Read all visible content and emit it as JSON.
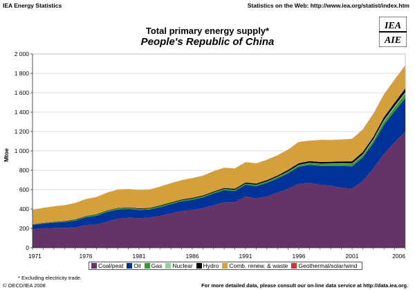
{
  "header": {
    "left": "IEA Energy Statistics",
    "right": "Statistics on the Web: http://www.iea.org/statist/index.htm"
  },
  "logo": {
    "name": "iea-logo",
    "text_top": "IEA",
    "text_bottom": "AIE"
  },
  "footnote": "* Excluding electricity trade.",
  "footer": {
    "copyright": "© OECD/IEA 2008",
    "more_data": "For more detailed data, please consult our on-line data service at http://data.iea.org."
  },
  "chart_data": {
    "type": "area",
    "title": "Total primary energy supply*",
    "subtitle": "People's Republic of China",
    "ylabel": "Mtoe",
    "xlabel": "",
    "ylim": [
      0,
      2000
    ],
    "yticks": [
      0,
      200,
      400,
      600,
      800,
      1000,
      1200,
      1400,
      1600,
      1800,
      2000
    ],
    "ytick_labels": [
      "0",
      "200",
      "400",
      "600",
      "800",
      "1 000",
      "1 200",
      "1 400",
      "1 600",
      "1 800",
      "2 000"
    ],
    "xlim": [
      1971,
      2006
    ],
    "xticks": [
      1971,
      1976,
      1981,
      1986,
      1991,
      1996,
      2001,
      2006
    ],
    "grid": true,
    "legend_position": "bottom",
    "stacked": true,
    "x": [
      1971,
      1972,
      1973,
      1974,
      1975,
      1976,
      1977,
      1978,
      1979,
      1980,
      1981,
      1982,
      1983,
      1984,
      1985,
      1986,
      1987,
      1988,
      1989,
      1990,
      1991,
      1992,
      1993,
      1994,
      1995,
      1996,
      1997,
      1998,
      1999,
      2000,
      2001,
      2002,
      2003,
      2004,
      2005,
      2006
    ],
    "series": [
      {
        "name": "Coal/peat",
        "color": "#663366",
        "values": [
          190,
          200,
          205,
          205,
          210,
          235,
          240,
          270,
          300,
          310,
          305,
          310,
          330,
          355,
          380,
          390,
          410,
          440,
          470,
          470,
          530,
          510,
          530,
          570,
          610,
          660,
          670,
          650,
          640,
          620,
          610,
          690,
          820,
          970,
          1090,
          1200
        ]
      },
      {
        "name": "Oil",
        "color": "#003399",
        "values": [
          45,
          50,
          55,
          60,
          70,
          80,
          90,
          100,
          95,
          90,
          85,
          85,
          90,
          95,
          100,
          105,
          110,
          120,
          125,
          115,
          120,
          125,
          140,
          145,
          160,
          175,
          185,
          195,
          205,
          225,
          230,
          240,
          260,
          300,
          320,
          345
        ]
      },
      {
        "name": "Gas",
        "color": "#339933",
        "values": [
          3,
          4,
          5,
          6,
          8,
          9,
          10,
          11,
          12,
          12,
          11,
          10,
          10,
          11,
          11,
          12,
          12,
          12,
          13,
          13,
          13,
          14,
          14,
          14,
          15,
          17,
          18,
          19,
          20,
          22,
          25,
          26,
          30,
          35,
          40,
          47
        ]
      },
      {
        "name": "Nuclear",
        "color": "#99cc99",
        "values": [
          0,
          0,
          0,
          0,
          0,
          0,
          0,
          0,
          0,
          0,
          0,
          0,
          0,
          0,
          0,
          0,
          0,
          0,
          0,
          0,
          0,
          1,
          1,
          3,
          3,
          4,
          4,
          4,
          4,
          5,
          5,
          6,
          11,
          13,
          14,
          14
        ]
      },
      {
        "name": "Hydro",
        "color": "#000000",
        "values": [
          3,
          3,
          3,
          4,
          4,
          4,
          4,
          4,
          4,
          5,
          6,
          6,
          7,
          7,
          7,
          8,
          8,
          9,
          9,
          11,
          11,
          12,
          13,
          14,
          16,
          16,
          17,
          18,
          18,
          19,
          22,
          25,
          25,
          30,
          34,
          38
        ]
      },
      {
        "name": "Comb. renew. & waste",
        "color": "#d4a03c",
        "values": [
          150,
          155,
          160,
          165,
          170,
          175,
          180,
          185,
          190,
          190,
          190,
          190,
          195,
          200,
          200,
          205,
          205,
          210,
          210,
          210,
          210,
          210,
          210,
          210,
          210,
          220,
          210,
          225,
          225,
          225,
          230,
          230,
          235,
          235,
          235,
          235
        ]
      },
      {
        "name": "Geothermal/solar/wind",
        "color": "#cc3333",
        "values": [
          0,
          0,
          0,
          0,
          0,
          0,
          0,
          0,
          0,
          0,
          0,
          0,
          0,
          0,
          0,
          0,
          0,
          0,
          0,
          0,
          0,
          0,
          0,
          0,
          0,
          1,
          1,
          1,
          1,
          1,
          2,
          2,
          2,
          2,
          3,
          3
        ]
      }
    ]
  }
}
